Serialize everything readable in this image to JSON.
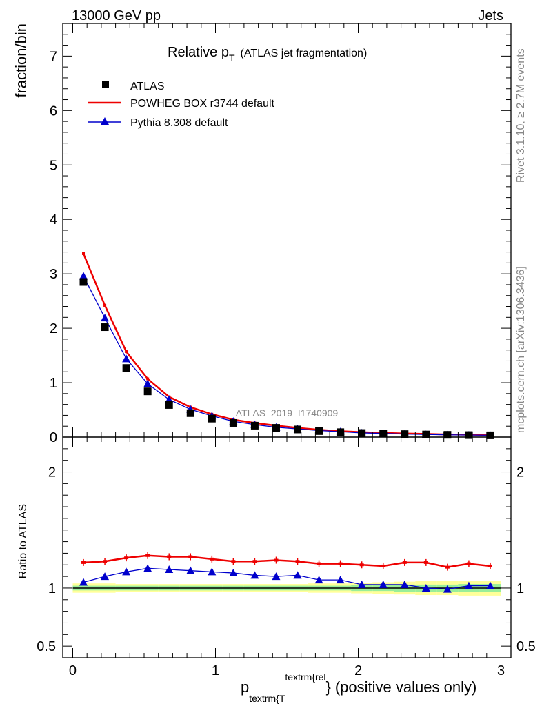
{
  "header": {
    "left": "13000 GeV pp",
    "right": "Jets"
  },
  "side_labels": {
    "rivet": "Rivet 3.1.10, ≥ 2.7M events",
    "mcplots": "mcplots.cern.ch [arXiv:1306.3436]"
  },
  "chart_data": [
    {
      "type": "line",
      "panel": "main",
      "title": {
        "prefix": "Relative p",
        "sub": "T",
        "suffix": "(ATLAS jet fragmentation)"
      },
      "watermark": "ATLAS_2019_I1740909",
      "ylabel": "fraction/bin",
      "xlim": [
        -0.07,
        3.07
      ],
      "ylim": [
        0,
        7.6
      ],
      "yticks": [
        0,
        1,
        2,
        3,
        4,
        5,
        6,
        7
      ],
      "legend_position": "top-left",
      "x": [
        0.075,
        0.225,
        0.375,
        0.525,
        0.675,
        0.825,
        0.975,
        1.125,
        1.275,
        1.425,
        1.575,
        1.725,
        1.875,
        2.025,
        2.175,
        2.325,
        2.475,
        2.625,
        2.775,
        2.925
      ],
      "series": [
        {
          "name": "ATLAS",
          "style": "marker-square",
          "color": "#000000",
          "values": [
            2.85,
            2.02,
            1.27,
            0.84,
            0.59,
            0.44,
            0.34,
            0.26,
            0.21,
            0.17,
            0.14,
            0.11,
            0.09,
            0.075,
            0.065,
            0.055,
            0.048,
            0.042,
            0.037,
            0.033
          ]
        },
        {
          "name": "POWHEG BOX r3744 default",
          "style": "line",
          "color": "#ee0000",
          "values": [
            3.37,
            2.42,
            1.57,
            1.07,
            0.74,
            0.55,
            0.42,
            0.32,
            0.26,
            0.21,
            0.17,
            0.135,
            0.11,
            0.09,
            0.077,
            0.066,
            0.058,
            0.049,
            0.045,
            0.04
          ]
        },
        {
          "name": "Pythia 8.308 default",
          "style": "line-triangle",
          "color": "#0000cc",
          "values": [
            2.96,
            2.19,
            1.44,
            0.98,
            0.69,
            0.51,
            0.39,
            0.29,
            0.23,
            0.18,
            0.15,
            0.12,
            0.1,
            0.077,
            0.067,
            0.056,
            0.048,
            0.041,
            0.038,
            0.033
          ]
        }
      ]
    },
    {
      "type": "line",
      "panel": "ratio",
      "ylabel": "Ratio to ATLAS",
      "xlabel": {
        "p": "p",
        "sub": "textrm{T",
        "sup": "textrm{rel",
        "brace": "}",
        "suffix": "(positive values only)"
      },
      "xlim": [
        -0.07,
        3.07
      ],
      "xticks": [
        0,
        1,
        2,
        3
      ],
      "ylim": [
        0.4,
        2.3
      ],
      "yticks": [
        0.5,
        1,
        2
      ],
      "x": [
        0.075,
        0.225,
        0.375,
        0.525,
        0.675,
        0.825,
        0.975,
        1.125,
        1.275,
        1.425,
        1.575,
        1.725,
        1.875,
        2.025,
        2.175,
        2.325,
        2.475,
        2.625,
        2.775,
        2.925
      ],
      "band": {
        "color_outer": "#ffff99",
        "color_inner": "#99ee99",
        "outer": [
          0.04,
          0.04,
          0.035,
          0.035,
          0.035,
          0.035,
          0.035,
          0.035,
          0.035,
          0.035,
          0.035,
          0.04,
          0.04,
          0.045,
          0.05,
          0.055,
          0.06,
          0.06,
          0.065,
          0.065
        ],
        "inner": [
          0.02,
          0.02,
          0.02,
          0.02,
          0.02,
          0.02,
          0.02,
          0.02,
          0.02,
          0.02,
          0.02,
          0.02,
          0.02,
          0.025,
          0.025,
          0.03,
          0.03,
          0.03,
          0.035,
          0.035
        ]
      },
      "series": [
        {
          "name": "POWHEG BOX r3744 default",
          "color": "#ee0000",
          "values": [
            1.22,
            1.23,
            1.26,
            1.28,
            1.27,
            1.27,
            1.25,
            1.23,
            1.23,
            1.24,
            1.23,
            1.21,
            1.21,
            1.2,
            1.19,
            1.22,
            1.22,
            1.18,
            1.21,
            1.19
          ]
        },
        {
          "name": "Pythia 8.308 default",
          "color": "#0000cc",
          "values": [
            1.05,
            1.1,
            1.14,
            1.17,
            1.16,
            1.15,
            1.14,
            1.13,
            1.11,
            1.1,
            1.11,
            1.07,
            1.07,
            1.03,
            1.03,
            1.03,
            1.0,
            0.99,
            1.02,
            1.02
          ]
        }
      ]
    }
  ]
}
